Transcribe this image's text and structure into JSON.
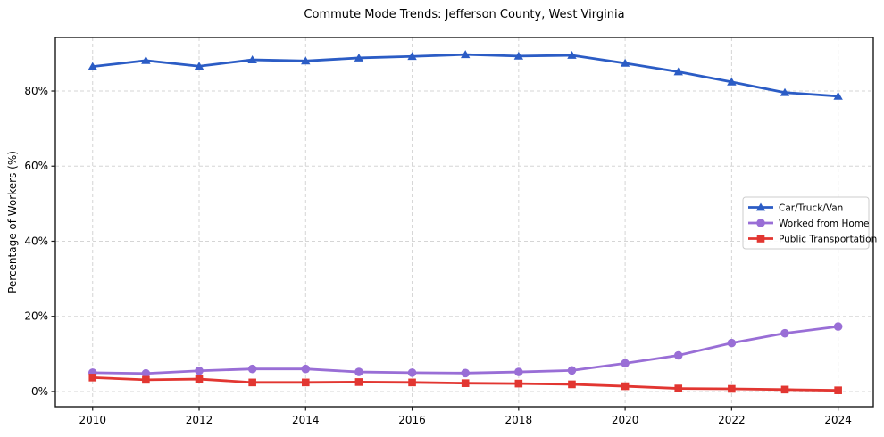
{
  "chart_data": {
    "type": "line",
    "title": "Commute Mode Trends: Jefferson County, West Virginia",
    "xlabel": "",
    "ylabel": "Percentage of Workers (%)",
    "x": [
      2010,
      2011,
      2012,
      2013,
      2014,
      2015,
      2016,
      2017,
      2018,
      2019,
      2020,
      2021,
      2022,
      2023,
      2024
    ],
    "series": [
      {
        "name": "Car/Truck/Van",
        "marker": "triangle",
        "color": "#2b5cc5",
        "values": [
          86.5,
          88.1,
          86.6,
          88.3,
          88.0,
          88.8,
          89.2,
          89.7,
          89.3,
          89.5,
          87.4,
          85.1,
          82.4,
          79.6,
          78.6
        ]
      },
      {
        "name": "Worked from Home",
        "marker": "circle",
        "color": "#996ed6",
        "values": [
          5.0,
          4.8,
          5.5,
          6.0,
          6.0,
          5.2,
          5.0,
          4.9,
          5.2,
          5.6,
          7.5,
          9.6,
          12.9,
          15.5,
          17.3
        ]
      },
      {
        "name": "Public Transportation",
        "marker": "square",
        "color": "#e23631",
        "values": [
          3.7,
          3.1,
          3.3,
          2.4,
          2.4,
          2.5,
          2.4,
          2.2,
          2.1,
          1.9,
          1.4,
          0.8,
          0.7,
          0.5,
          0.3
        ]
      }
    ],
    "xticks": [
      2010,
      2012,
      2014,
      2016,
      2018,
      2020,
      2022,
      2024
    ],
    "xtick_labels": [
      "2010",
      "2012",
      "2014",
      "2016",
      "2018",
      "2020",
      "2022",
      "2024"
    ],
    "yticks": [
      0,
      20,
      40,
      60,
      80
    ],
    "ytick_labels": [
      "0%",
      "20%",
      "40%",
      "60%",
      "80%"
    ],
    "xlim": [
      2009.3,
      2024.66
    ],
    "ylim": [
      -4.05,
      94.25
    ],
    "grid": true,
    "grid_color": "#d5d5d5",
    "spine_color": "#1a1a1a",
    "background_color": "#ffffff",
    "legend": {
      "position": "center right",
      "entries": [
        "Car/Truck/Van",
        "Worked from Home",
        "Public Transportation"
      ]
    }
  }
}
